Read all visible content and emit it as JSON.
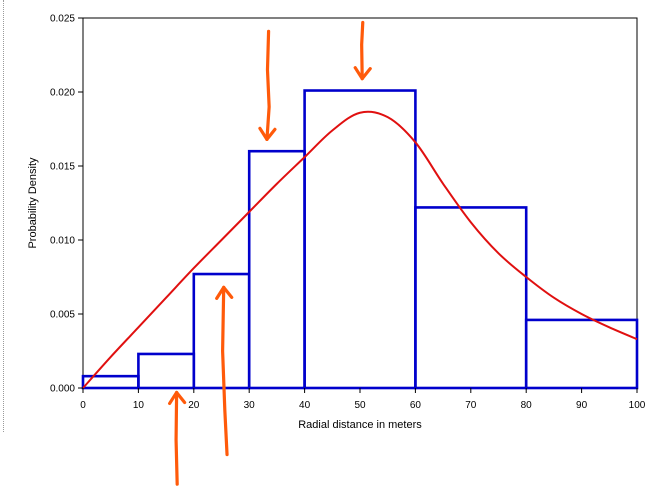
{
  "chart_data": {
    "type": "bar",
    "xlabel": "Radial distance in meters",
    "ylabel": "Probability Density",
    "xlim": [
      0,
      100
    ],
    "ylim": [
      0,
      0.025
    ],
    "x_ticks": [
      "0",
      "10",
      "20",
      "30",
      "40",
      "50",
      "60",
      "70",
      "80",
      "90",
      "100"
    ],
    "y_ticks": [
      "0.000",
      "0.005",
      "0.010",
      "0.015",
      "0.020",
      "0.025"
    ],
    "grid": false,
    "legend": "none",
    "histogram": {
      "color": "#0000cc",
      "bins": [
        {
          "x0": 0,
          "x1": 10,
          "value": 0.0008
        },
        {
          "x0": 10,
          "x1": 20,
          "value": 0.0023
        },
        {
          "x0": 20,
          "x1": 30,
          "value": 0.0077
        },
        {
          "x0": 30,
          "x1": 40,
          "value": 0.016
        },
        {
          "x0": 40,
          "x1": 60,
          "value": 0.0201
        },
        {
          "x0": 60,
          "x1": 80,
          "value": 0.0122
        },
        {
          "x0": 80,
          "x1": 100,
          "value": 0.0046
        }
      ]
    },
    "curve": {
      "color": "#e01010",
      "x": [
        0,
        5,
        10,
        15,
        20,
        25,
        30,
        35,
        40,
        45,
        50,
        55,
        60,
        65,
        70,
        75,
        80,
        85,
        90,
        95,
        100
      ],
      "y": [
        0.0,
        0.0021,
        0.0041,
        0.0061,
        0.0081,
        0.01,
        0.0119,
        0.0138,
        0.0156,
        0.0174,
        0.0186,
        0.0183,
        0.0166,
        0.0138,
        0.0112,
        0.0091,
        0.0075,
        0.0061,
        0.005,
        0.0041,
        0.0033
      ]
    },
    "annotations": {
      "color": "#ff5a0a",
      "arrows": [
        {
          "name": "arrow-bin-30-40",
          "points": [
            [
              33.5,
              0.0241
            ],
            [
              33.3,
              0.0215
            ],
            [
              33.6,
              0.019
            ],
            [
              33.2,
              0.0168
            ]
          ],
          "tip": [
            33.2,
            0.0168
          ],
          "heading": "down"
        },
        {
          "name": "arrow-bin-40-60",
          "points": [
            [
              50.5,
              0.0247
            ],
            [
              50.3,
              0.0232
            ],
            [
              50.4,
              0.0209
            ]
          ],
          "tip": [
            50.4,
            0.0209
          ],
          "heading": "down"
        },
        {
          "name": "arrow-bin-20-30",
          "points": [
            [
              26.0,
              -0.0045
            ],
            [
              25.6,
              -0.0015
            ],
            [
              25.2,
              0.0025
            ],
            [
              25.4,
              0.0068
            ]
          ],
          "tip": [
            25.4,
            0.0068
          ],
          "heading": "up"
        },
        {
          "name": "arrow-bin-10-20",
          "points": [
            [
              17.0,
              -0.0065
            ],
            [
              16.8,
              -0.0035
            ],
            [
              16.9,
              -0.0003
            ]
          ],
          "tip": [
            16.9,
            -0.0003
          ],
          "heading": "up"
        }
      ]
    }
  }
}
